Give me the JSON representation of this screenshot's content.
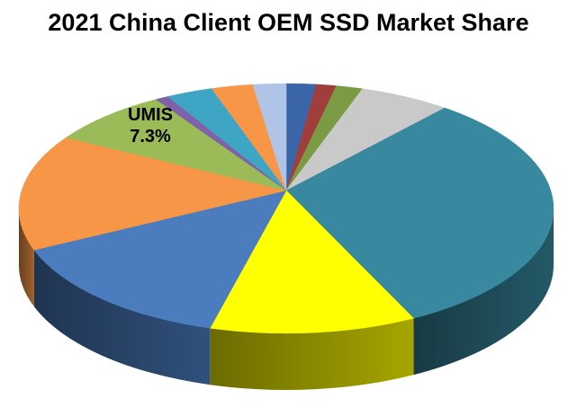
{
  "chart_data": {
    "type": "pie",
    "title": "2021 China Client OEM SSD Market Share",
    "is_3d": true,
    "start_angle_deg": 90,
    "direction": "clockwise",
    "legend_position": "none",
    "background_color": "#FFFFFF",
    "callout": {
      "name": "UMIS",
      "value_label": "7.3%"
    },
    "slices": [
      {
        "id": "slice-1-steel-blue",
        "label": "",
        "value": 1.8,
        "color": "#3A66A7"
      },
      {
        "id": "slice-2-dark-red",
        "label": "",
        "value": 1.2,
        "color": "#A03E3C"
      },
      {
        "id": "slice-3-olive-green",
        "label": "",
        "value": 1.6,
        "color": "#7A9A43"
      },
      {
        "id": "slice-4-gray",
        "label": "",
        "value": 5.5,
        "color": "#C9C9C9"
      },
      {
        "id": "slice-5-teal",
        "label": "",
        "value": 32.0,
        "color": "#3889A0"
      },
      {
        "id": "slice-6-yellow",
        "label": "",
        "value": 12.5,
        "color": "#FFFF00"
      },
      {
        "id": "slice-7-blue",
        "label": "",
        "value": 15.0,
        "color": "#4A7CBE"
      },
      {
        "id": "slice-8-orange",
        "label": "",
        "value": 15.0,
        "color": "#F79646"
      },
      {
        "id": "slice-9-umis-green",
        "label": "UMIS",
        "value": 7.3,
        "color": "#9BBB59"
      },
      {
        "id": "slice-10-purple",
        "label": "",
        "value": 0.8,
        "color": "#7F63A8"
      },
      {
        "id": "slice-11-light-teal",
        "label": "",
        "value": 2.8,
        "color": "#3EA5C5"
      },
      {
        "id": "slice-12-orange-small",
        "label": "",
        "value": 2.5,
        "color": "#F79646"
      },
      {
        "id": "slice-13-periwinkle",
        "label": "",
        "value": 2.0,
        "color": "#AFC4E6"
      }
    ]
  }
}
